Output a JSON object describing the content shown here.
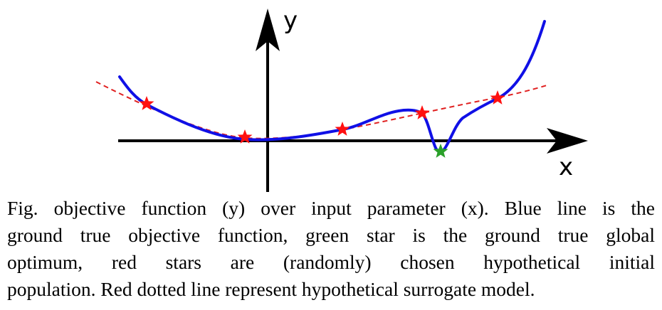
{
  "figure": {
    "x_axis_label": "x",
    "y_axis_label": "y",
    "colors": {
      "ground_truth_line": "#1010e6",
      "surrogate_line": "#e02020",
      "initial_population_star": "#ff1010",
      "global_optimum_star": "#2aa02a",
      "axes": "#000000"
    }
  },
  "caption": {
    "lines": [
      "Fig. objective function (y) over input parameter (x). Blue line is the",
      "ground true objective function, green star is the ground true global",
      "optimum, red stars are (randomly) chosen hypothetical initial",
      "population. Red dotted line represent hypothetical surrogate model."
    ]
  }
}
